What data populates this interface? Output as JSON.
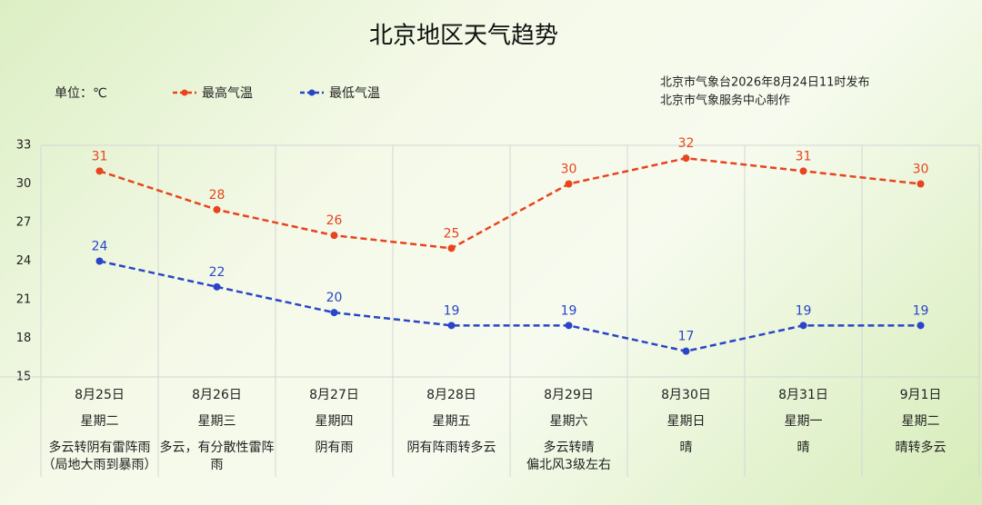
{
  "chart_data": {
    "type": "line",
    "title": "北京地区天气趋势",
    "unit_label": "单位：℃",
    "source_lines": [
      "北京市气象台2026年8月24日11时发布",
      "北京市气象服务中心制作"
    ],
    "categories": [
      "8月25日",
      "8月26日",
      "8月27日",
      "8月28日",
      "8月29日",
      "8月30日",
      "8月31日",
      "9月1日"
    ],
    "weekdays": [
      "星期二",
      "星期三",
      "星期四",
      "星期五",
      "星期六",
      "星期日",
      "星期一",
      "星期二"
    ],
    "weather": [
      "多云转阴有雷阵雨（局地大雨到暴雨）",
      "多云，有分散性雷阵雨",
      "阴有雨",
      "阴有阵雨转多云",
      "多云转晴\n偏北风3级左右",
      "晴",
      "晴",
      "晴转多云"
    ],
    "series": [
      {
        "name": "最高气温",
        "color": "#e8441e",
        "values": [
          31,
          28,
          26,
          25,
          30,
          32,
          31,
          30
        ]
      },
      {
        "name": "最低气温",
        "color": "#2a45c8",
        "values": [
          24,
          22,
          20,
          19,
          19,
          17,
          19,
          19
        ]
      }
    ],
    "ylim": [
      15,
      33
    ],
    "yticks": [
      15,
      18,
      21,
      24,
      27,
      30,
      33
    ]
  }
}
